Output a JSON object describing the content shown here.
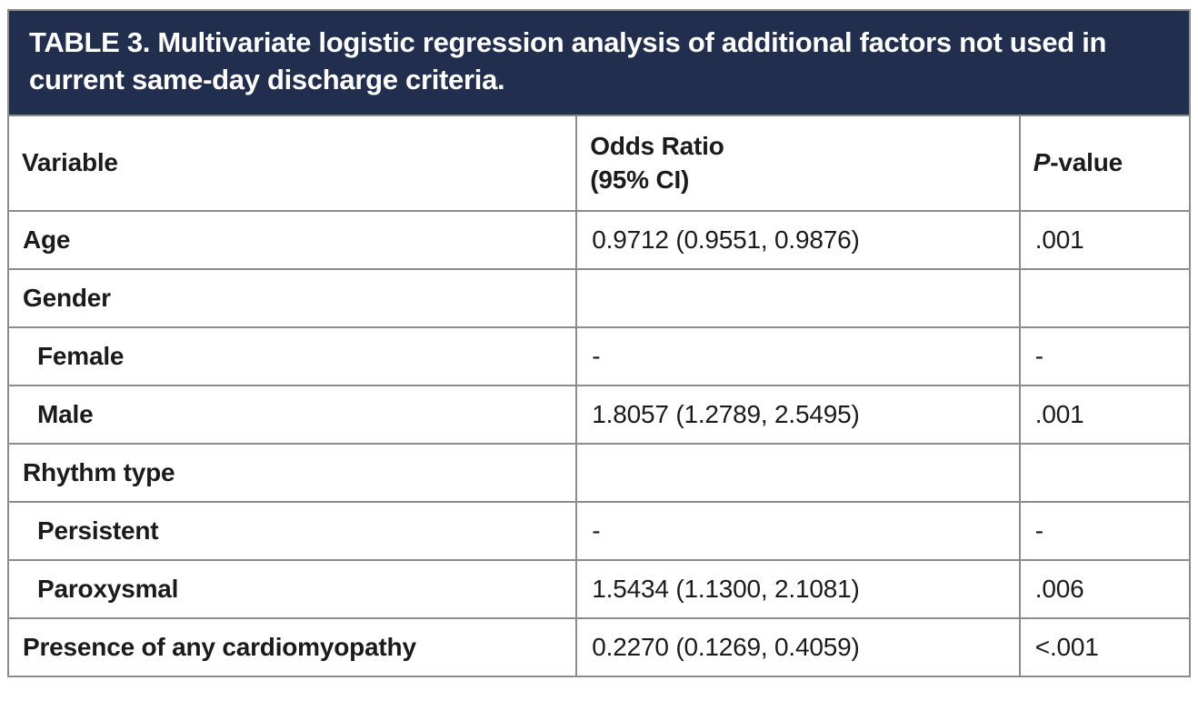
{
  "table": {
    "title": "TABLE 3. Multivariate logistic regression analysis of additional factors not used in current same-day discharge criteria.",
    "columns": {
      "variable": {
        "label": "Variable"
      },
      "odds_ratio": {
        "label_line1": "Odds Ratio",
        "label_line2": "(95% CI)"
      },
      "p_value": {
        "label_italic": "P",
        "label_suffix": "-value"
      }
    },
    "rows": [
      {
        "variable": "Age",
        "odds_ratio": "0.9712 (0.9551, 0.9876)",
        "p_value": ".001"
      },
      {
        "variable": "Gender",
        "odds_ratio": "",
        "p_value": ""
      },
      {
        "variable": "Female",
        "odds_ratio": "-",
        "p_value": "-"
      },
      {
        "variable": "Male",
        "odds_ratio": "1.8057 (1.2789, 2.5495)",
        "p_value": ".001"
      },
      {
        "variable": "Rhythm type",
        "odds_ratio": "",
        "p_value": ""
      },
      {
        "variable": "Persistent",
        "odds_ratio": "-",
        "p_value": "-"
      },
      {
        "variable": "Paroxysmal",
        "odds_ratio": "1.5434 (1.1300, 2.1081)",
        "p_value": ".006"
      },
      {
        "variable": "Presence of any cardiomyopathy",
        "odds_ratio": "0.2270 (0.1269, 0.4059)",
        "p_value": "<.001"
      }
    ],
    "colors": {
      "title_bar_bg": "#212e4e",
      "title_text": "#ffffff",
      "border": "#8c8c8c",
      "body_text": "#1b1b1b"
    }
  }
}
